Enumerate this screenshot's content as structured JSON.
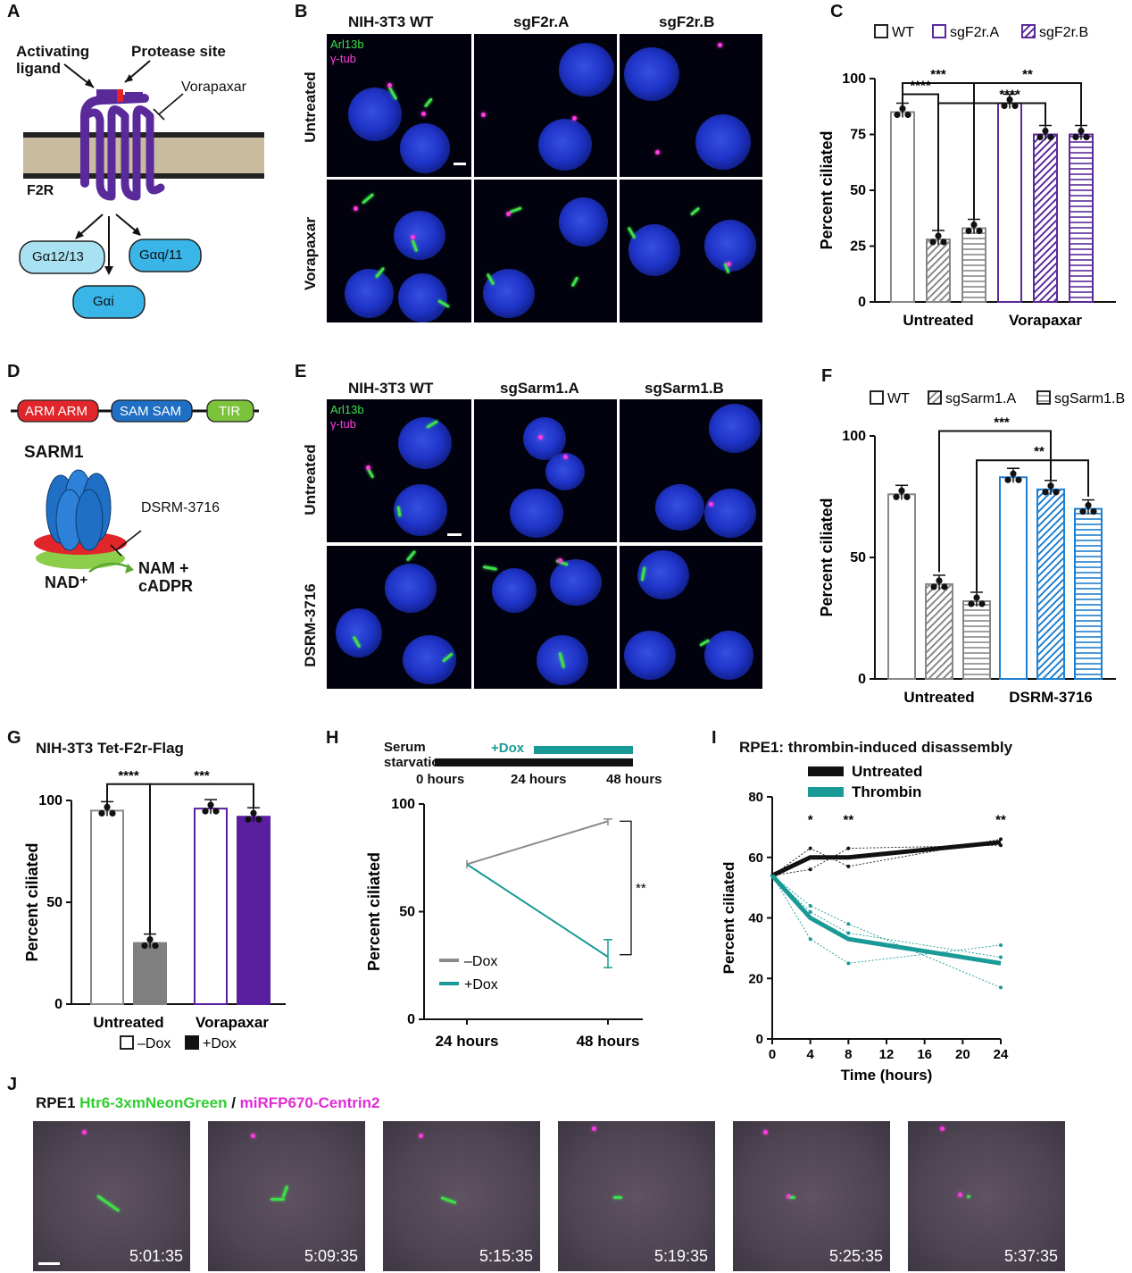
{
  "panels": {
    "A": {
      "label": "A",
      "activating": "Activating\nligand",
      "protease": "Protease site",
      "drug": "Vorapaxar",
      "receptor": "F2R",
      "g1": "Gα12/13",
      "g2": "Gαq/11",
      "g3": "Gαi"
    },
    "B": {
      "label": "B",
      "columns": [
        "NIH-3T3 WT",
        "sgF2r.A",
        "sgF2r.B"
      ],
      "rows": [
        "Untreated",
        "Vorapaxar"
      ],
      "stain1": "Arl13b",
      "stain2": "γ-tub"
    },
    "C": {
      "label": "C"
    },
    "D": {
      "label": "D",
      "domains": [
        "ARM ARM",
        "SAM SAM",
        "TIR"
      ],
      "protein": "SARM1",
      "drug": "DSRM-3716",
      "substrate": "NAD⁺",
      "products": "NAM +\ncADPR"
    },
    "E": {
      "label": "E",
      "columns": [
        "NIH-3T3 WT",
        "sgSarm1.A",
        "sgSarm1.B"
      ],
      "rows": [
        "Untreated",
        "DSRM-3716"
      ],
      "stain1": "Arl13b",
      "stain2": "γ-tub"
    },
    "F": {
      "label": "F"
    },
    "G": {
      "label": "G",
      "title": "NIH-3T3 Tet-F2r-Flag"
    },
    "H": {
      "label": "H",
      "schematic": {
        "serum": "Serum\nstarvation",
        "dox": "+Dox",
        "times": [
          "0 hours",
          "24 hours",
          "48 hours"
        ]
      }
    },
    "I": {
      "label": "I",
      "title": "RPE1: thrombin-induced disassembly"
    },
    "J": {
      "label": "J",
      "title_parts": [
        "RPE1 ",
        "Htr6-3xmNeonGreen",
        " / ",
        "miRFP670-Centrin2"
      ],
      "timestamps": [
        "5:01:35",
        "5:09:35",
        "5:15:35",
        "5:19:35",
        "5:25:35",
        "5:37:35"
      ]
    }
  },
  "chart_data": [
    {
      "panel": "C",
      "type": "bar",
      "ylabel": "Percent ciliated",
      "ylim": [
        0,
        100
      ],
      "yticks": [
        0,
        25,
        50,
        75,
        100
      ],
      "groups": [
        "Untreated",
        "Vorapaxar"
      ],
      "legend": [
        "WT",
        "sgF2r.A",
        "sgF2r.B"
      ],
      "series": [
        {
          "name": "WT",
          "values": [
            85,
            89
          ]
        },
        {
          "name": "sgF2r.A",
          "values": [
            28,
            75
          ]
        },
        {
          "name": "sgF2r.B",
          "values": [
            33,
            75
          ]
        }
      ],
      "significance": [
        "****",
        "***",
        "****",
        "**"
      ]
    },
    {
      "panel": "F",
      "type": "bar",
      "ylabel": "Percent ciliated",
      "ylim": [
        0,
        100
      ],
      "yticks": [
        0,
        50,
        100
      ],
      "groups": [
        "Untreated",
        "DSRM-3716"
      ],
      "legend": [
        "WT",
        "sgSarm1.A",
        "sgSarm1.B"
      ],
      "series": [
        {
          "name": "WT",
          "values": [
            76,
            83
          ]
        },
        {
          "name": "sgSarm1.A",
          "values": [
            39,
            78
          ]
        },
        {
          "name": "sgSarm1.B",
          "values": [
            32,
            70
          ]
        }
      ],
      "significance": [
        "***",
        "**"
      ]
    },
    {
      "panel": "G",
      "type": "bar",
      "ylabel": "Percent ciliated",
      "ylim": [
        0,
        100
      ],
      "yticks": [
        0,
        50,
        100
      ],
      "groups": [
        "Untreated",
        "Vorapaxar"
      ],
      "legend": [
        "–Dox",
        "+Dox"
      ],
      "series": [
        {
          "name": "–Dox",
          "values": [
            95,
            96
          ]
        },
        {
          "name": "+Dox",
          "values": [
            30,
            92
          ]
        }
      ],
      "significance": [
        "****",
        "***"
      ]
    },
    {
      "panel": "H",
      "type": "line",
      "ylabel": "Percent ciliated",
      "ylim": [
        0,
        100
      ],
      "yticks": [
        0,
        50,
        100
      ],
      "x": [
        "24 hours",
        "48 hours"
      ],
      "series": [
        {
          "name": "–Dox",
          "values": [
            72,
            92
          ],
          "color": "#8a8a8a"
        },
        {
          "name": "+Dox",
          "values": [
            72,
            29
          ],
          "color": "#1a9a96"
        }
      ],
      "significance": [
        "**"
      ]
    },
    {
      "panel": "I",
      "type": "line",
      "xlabel": "Time (hours)",
      "ylabel": "Percent ciliated",
      "ylim": [
        0,
        80
      ],
      "xlim": [
        0,
        24
      ],
      "yticks": [
        0,
        20,
        40,
        60,
        80
      ],
      "xticks": [
        0,
        4,
        8,
        12,
        16,
        20,
        24
      ],
      "series": [
        {
          "name": "Untreated",
          "x": [
            0,
            4,
            8,
            24
          ],
          "values": [
            54,
            60,
            60,
            65
          ],
          "color": "#111111"
        },
        {
          "name": "Thrombin",
          "x": [
            0,
            4,
            8,
            24
          ],
          "values": [
            54,
            40,
            33,
            25
          ],
          "color": "#1a9a96"
        }
      ],
      "significance": [
        "*",
        "**",
        "**"
      ]
    }
  ]
}
